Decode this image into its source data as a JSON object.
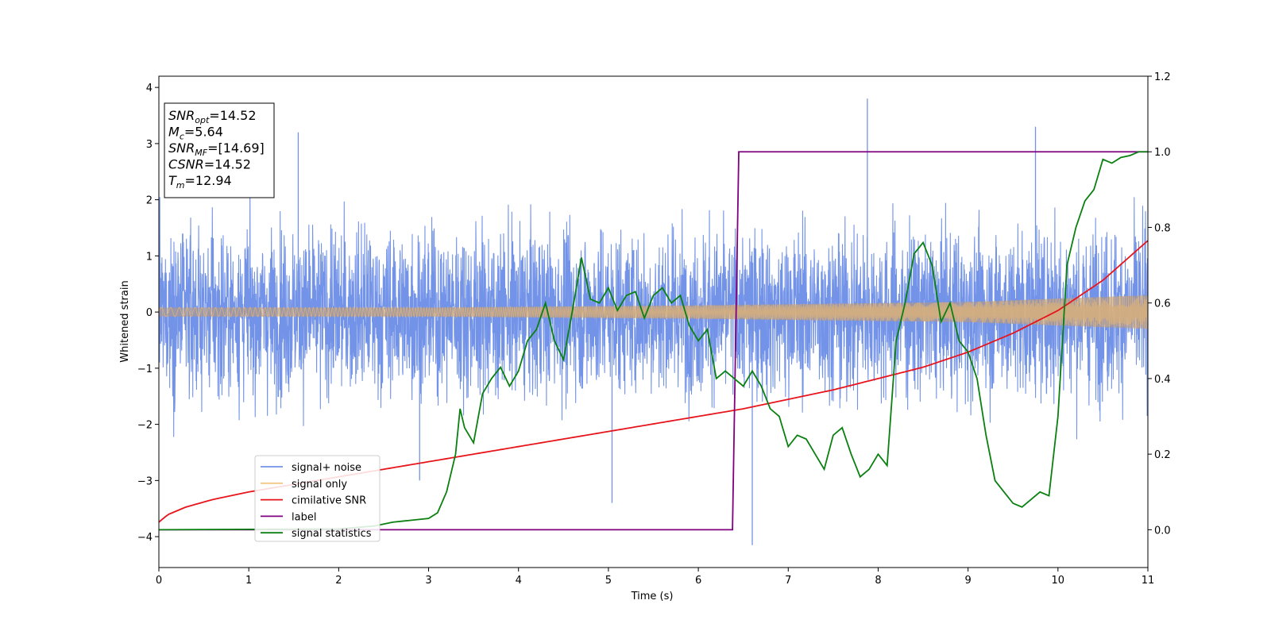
{
  "chart_data": {
    "type": "line",
    "xlabel": "Time (s)",
    "ylabel": "Whitened strain",
    "xlim": [
      0,
      11
    ],
    "ylim": [
      -4.55,
      4.2
    ],
    "y2lim": [
      -0.1,
      1.2
    ],
    "x_ticks": [
      "0",
      "1",
      "2",
      "3",
      "4",
      "5",
      "6",
      "7",
      "8",
      "9",
      "10",
      "11"
    ],
    "y_ticks": [
      "−4",
      "−3",
      "−2",
      "−1",
      "0",
      "1",
      "2",
      "3",
      "4"
    ],
    "y2_ticks": [
      "0.0",
      "0.2",
      "0.4",
      "0.6",
      "0.8",
      "1.0",
      "1.2"
    ],
    "annotation_box": {
      "lines": [
        {
          "base": "SNR",
          "sub": "opt",
          "rest": "=14.52"
        },
        {
          "base": "M",
          "sub": "c",
          "rest": "=5.64"
        },
        {
          "base": "SNR",
          "sub": "MF",
          "rest": "=[14.69]"
        },
        {
          "base": "CSNR",
          "sub": "",
          "rest": "=14.52"
        },
        {
          "base": "T",
          "sub": "m",
          "rest": "=12.94"
        }
      ]
    },
    "legend": {
      "placement": "lower-left",
      "entries": [
        "signal+ noise",
        "signal only",
        "cimilative SNR",
        "label",
        "signal statistics"
      ]
    },
    "colors": {
      "signal_noise": "#7393e8",
      "signal_only": "#f5c785",
      "overlap": "#bb9a78",
      "cumulative_snr": "#e8141c",
      "label": "#800080",
      "signal_statistics": "#0a8010"
    },
    "series": [
      {
        "name": "signal+ noise",
        "axis": "left",
        "description_values": {
          "typical_amplitude": 1.3,
          "max_peak": 3.8,
          "min_peak": -4.15
        }
      },
      {
        "name": "signal only",
        "axis": "left",
        "envelope": {
          "x": [
            0,
            3,
            6,
            9,
            11
          ],
          "amplitude": [
            0.08,
            0.08,
            0.12,
            0.18,
            0.3
          ]
        }
      },
      {
        "name": "cimilative SNR",
        "axis": "right",
        "x": [
          0,
          0.1,
          0.3,
          0.6,
          1,
          2,
          3,
          4,
          5,
          6,
          6.5,
          7,
          7.5,
          8,
          8.5,
          9,
          9.5,
          10,
          10.5,
          11
        ],
        "y": [
          0.02,
          0.04,
          0.06,
          0.08,
          0.1,
          0.14,
          0.18,
          0.22,
          0.26,
          0.3,
          0.32,
          0.345,
          0.37,
          0.4,
          0.43,
          0.47,
          0.52,
          0.58,
          0.66,
          0.765
        ]
      },
      {
        "name": "label",
        "axis": "right",
        "x": [
          0,
          6.38,
          6.45,
          11
        ],
        "y": [
          0,
          0,
          1,
          1
        ]
      },
      {
        "name": "signal statistics",
        "axis": "right",
        "x": [
          0,
          1,
          2,
          2.4,
          2.6,
          2.8,
          3.0,
          3.1,
          3.2,
          3.3,
          3.35,
          3.4,
          3.45,
          3.5,
          3.6,
          3.7,
          3.8,
          3.9,
          4.0,
          4.1,
          4.2,
          4.3,
          4.4,
          4.5,
          4.6,
          4.7,
          4.8,
          4.9,
          5.0,
          5.1,
          5.2,
          5.3,
          5.4,
          5.5,
          5.6,
          5.7,
          5.8,
          5.9,
          6.0,
          6.1,
          6.2,
          6.3,
          6.4,
          6.5,
          6.6,
          6.7,
          6.8,
          6.9,
          7.0,
          7.1,
          7.2,
          7.3,
          7.4,
          7.5,
          7.6,
          7.7,
          7.8,
          7.9,
          8.0,
          8.1,
          8.2,
          8.3,
          8.4,
          8.5,
          8.6,
          8.7,
          8.8,
          8.9,
          9.0,
          9.1,
          9.2,
          9.3,
          9.4,
          9.5,
          9.6,
          9.7,
          9.8,
          9.9,
          10.0,
          10.1,
          10.2,
          10.3,
          10.4,
          10.5,
          10.6,
          10.7,
          10.8,
          10.9,
          11.0
        ],
        "y": [
          0.0,
          0.001,
          0.002,
          0.01,
          0.02,
          0.025,
          0.03,
          0.045,
          0.1,
          0.2,
          0.32,
          0.27,
          0.25,
          0.23,
          0.36,
          0.4,
          0.43,
          0.38,
          0.42,
          0.5,
          0.53,
          0.6,
          0.5,
          0.45,
          0.58,
          0.72,
          0.61,
          0.6,
          0.64,
          0.58,
          0.62,
          0.63,
          0.56,
          0.62,
          0.64,
          0.6,
          0.62,
          0.54,
          0.5,
          0.53,
          0.4,
          0.42,
          0.4,
          0.38,
          0.42,
          0.38,
          0.32,
          0.3,
          0.22,
          0.25,
          0.24,
          0.2,
          0.16,
          0.25,
          0.27,
          0.2,
          0.14,
          0.16,
          0.2,
          0.17,
          0.5,
          0.6,
          0.73,
          0.76,
          0.7,
          0.55,
          0.6,
          0.5,
          0.47,
          0.4,
          0.25,
          0.13,
          0.1,
          0.07,
          0.06,
          0.08,
          0.1,
          0.09,
          0.3,
          0.7,
          0.8,
          0.87,
          0.9,
          0.98,
          0.97,
          0.985,
          0.99,
          1.0,
          1.0
        ]
      }
    ]
  }
}
